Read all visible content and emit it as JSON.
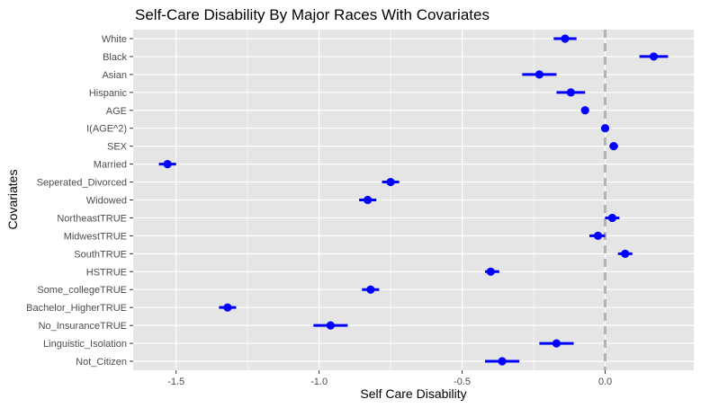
{
  "chart_data": {
    "type": "dot",
    "title": "Self-Care Disability By Major Races With Covariates",
    "xlabel": "Self Care Disability",
    "ylabel": "Covariates",
    "xlim": [
      -1.65,
      0.31
    ],
    "xticks": [
      -1.5,
      -1.0,
      -0.5,
      0.0
    ],
    "xtick_labels": [
      "-1.5",
      "-1.0",
      "-0.5",
      "0.0"
    ],
    "reference_line_x": 0,
    "grid": true,
    "colors": {
      "point": "#0000ff",
      "panel": "#e5e5e5",
      "grid": "#ffffff",
      "reference": "#b3b3b3"
    },
    "categories": [
      "White",
      "Black",
      "Asian",
      "Hispanic",
      "AGE",
      "I(AGE^2)",
      "SEX",
      "Married",
      "Seperated_Divorced",
      "Widowed",
      "NortheastTRUE",
      "MidwestTRUE",
      "SouthTRUE",
      "HSTRUE",
      "Some_collegeTRUE",
      "Bachelor_HigherTRUE",
      "No_InsuranceTRUE",
      "Linguistic_Isolation",
      "Not_Citizen"
    ],
    "estimates": [
      -0.14,
      0.17,
      -0.23,
      -0.12,
      -0.07,
      0.0,
      0.03,
      -1.53,
      -0.75,
      -0.83,
      0.025,
      -0.025,
      0.07,
      -0.4,
      -0.82,
      -1.32,
      -0.96,
      -0.17,
      -0.36
    ],
    "lower": [
      -0.18,
      0.12,
      -0.29,
      -0.17,
      -0.07,
      0.0,
      0.015,
      -1.56,
      -0.78,
      -0.86,
      0.0,
      -0.055,
      0.045,
      -0.42,
      -0.85,
      -1.35,
      -1.02,
      -0.23,
      -0.42
    ],
    "upper": [
      -0.1,
      0.22,
      -0.17,
      -0.07,
      -0.07,
      0.0,
      0.045,
      -1.5,
      -0.72,
      -0.8,
      0.05,
      0.0,
      0.095,
      -0.37,
      -0.79,
      -1.29,
      -0.9,
      -0.11,
      -0.3
    ]
  }
}
